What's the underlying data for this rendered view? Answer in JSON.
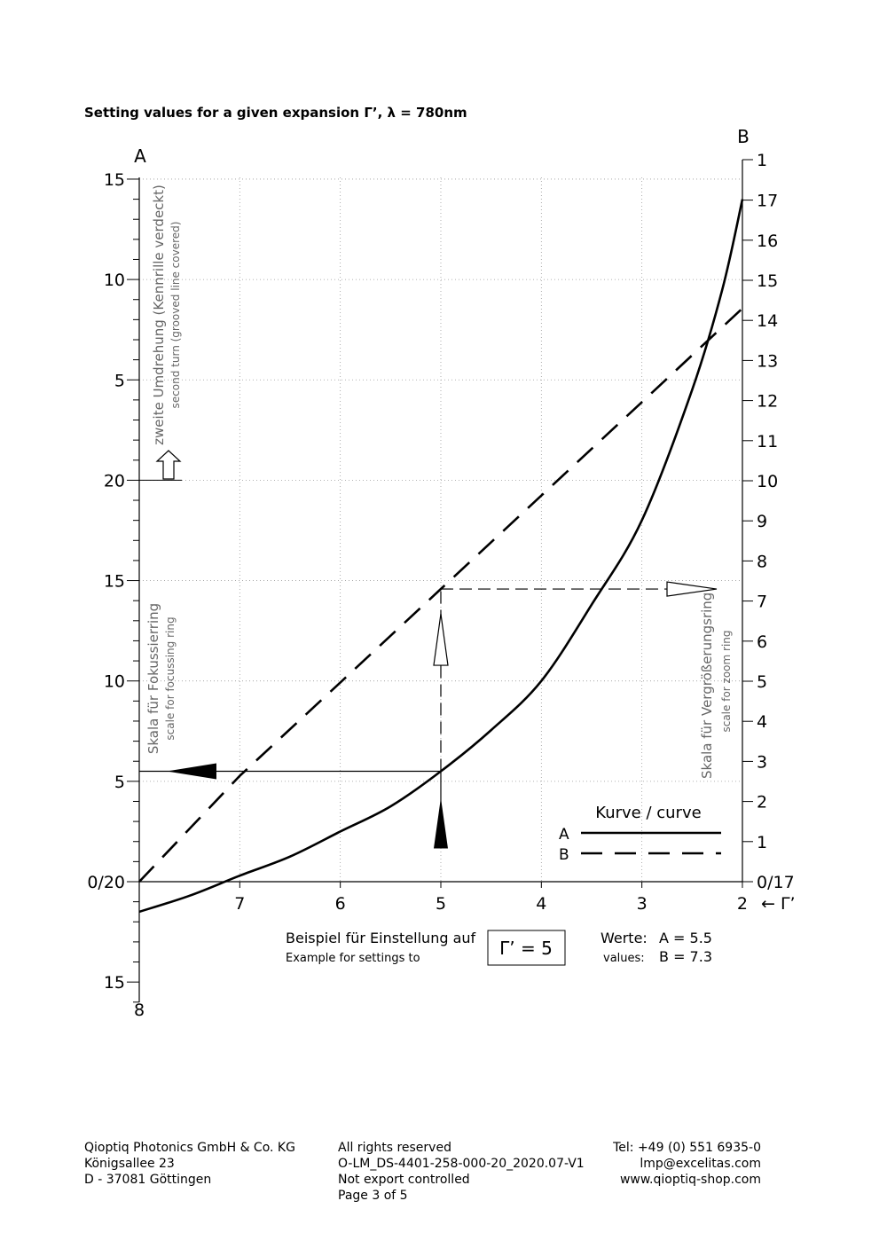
{
  "page": {
    "title": "Setting values for a given expansion Γ’, λ = 780nm"
  },
  "chart_data": {
    "type": "line",
    "x_axis_label": "← Γ’",
    "x_ticks": [
      "7",
      "6",
      "5",
      "4",
      "3",
      "2"
    ],
    "left_axis": {
      "name": "A",
      "tick_labels": [
        "15",
        "10",
        "5",
        "20",
        "15",
        "10",
        "5",
        "0/20",
        "15",
        "8"
      ],
      "upper_label": "zweite Umdrehung (Kennrille verdeckt)",
      "upper_sublabel": "second turn (grooved line covered)",
      "lower_label": "Skala für Fokussierring",
      "lower_sublabel": "scale for focussing ring"
    },
    "right_axis": {
      "name": "B",
      "tick_labels": [
        "1",
        "17",
        "16",
        "15",
        "14",
        "13",
        "12",
        "11",
        "10",
        "9",
        "8",
        "7",
        "6",
        "5",
        "4",
        "3",
        "2",
        "1",
        "0/17"
      ],
      "label": "Skala für Vergrößerungsring",
      "sublabel": "scale for zoom ring"
    },
    "series": [
      {
        "name": "A",
        "style": "solid",
        "color": "#000000",
        "x": [
          8.0,
          7.5,
          7.0,
          6.5,
          6.0,
          5.5,
          5.0,
          4.5,
          4.0,
          3.5,
          3.0,
          2.5,
          2.2,
          2.0
        ],
        "y": [
          -1.5,
          -0.7,
          0.3,
          1.25,
          2.5,
          3.75,
          5.5,
          7.55,
          10.0,
          13.8,
          18.0,
          24.5,
          29.5,
          34.0
        ]
      },
      {
        "name": "B",
        "style": "dashed",
        "color": "#000000",
        "x": [
          8.0,
          7.0,
          6.0,
          5.0,
          4.0,
          3.0,
          2.0
        ],
        "y": [
          0.0,
          2.64,
          4.97,
          7.3,
          9.63,
          11.96,
          14.3
        ]
      }
    ],
    "legend": {
      "title": "Kurve / curve",
      "entries": [
        "A",
        "B"
      ],
      "position": "bottom-right"
    },
    "example": {
      "label_de": "Beispiel für Einstellung auf",
      "label_en": "Example for settings to",
      "value_box": "Γ’ = 5",
      "values_de": "Werte:",
      "values_en": "values:",
      "value_a": "A = 5.5",
      "value_b": "B = 7.3",
      "gamma": 5,
      "a": 5.5,
      "b": 7.3
    },
    "grid": true
  },
  "footer": {
    "left": [
      "Qioptiq Photonics GmbH & Co. KG",
      "Königsallee 23",
      "D - 37081 Göttingen"
    ],
    "middle": [
      "All rights reserved",
      "O-LM_DS-4401-258-000-20_2020.07-V1",
      "Not export controlled",
      "Page 3 of 5"
    ],
    "right": [
      "Tel: +49 (0) 551 6935-0",
      "lmp@excelitas.com",
      "www.qioptiq-shop.com"
    ]
  }
}
